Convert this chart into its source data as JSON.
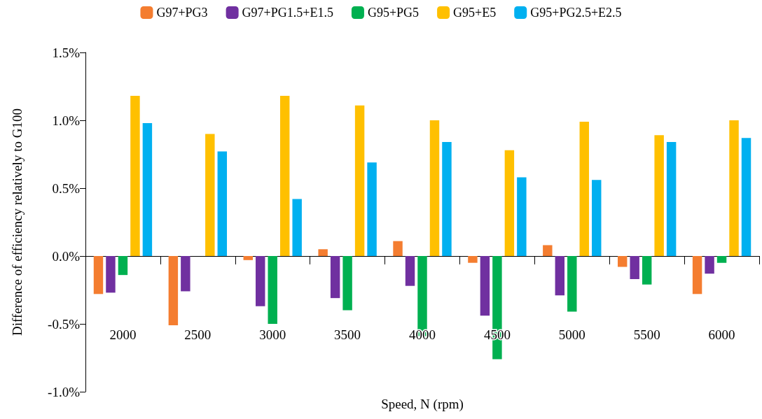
{
  "chart_data": {
    "type": "bar",
    "xlabel": "Speed, N (rpm)",
    "ylabel": "Difference of efficiency relatively to G100",
    "categories": [
      "2000",
      "2500",
      "3000",
      "3500",
      "4000",
      "4500",
      "5000",
      "5500",
      "6000"
    ],
    "series": [
      {
        "name": "G97+PG3",
        "color": "#f47d30",
        "values": [
          -0.28,
          -0.51,
          -0.03,
          0.05,
          0.11,
          -0.05,
          0.08,
          -0.08,
          -0.28
        ]
      },
      {
        "name": "G97+PG1.5+E1.5",
        "color": "#7030a0",
        "values": [
          -0.27,
          -0.26,
          -0.37,
          -0.31,
          -0.22,
          -0.44,
          -0.29,
          -0.17,
          -0.13
        ]
      },
      {
        "name": "G95+PG5",
        "color": "#00b050",
        "values": [
          -0.14,
          0,
          -0.5,
          -0.4,
          -0.59,
          -0.76,
          -0.41,
          -0.21,
          -0.05
        ]
      },
      {
        "name": "G95+E5",
        "color": "#ffc000",
        "values": [
          1.18,
          0.9,
          1.18,
          1.11,
          1.0,
          0.78,
          0.99,
          0.89,
          1.0
        ]
      },
      {
        "name": "G95+PG2.5+E2.5",
        "color": "#00b0f0",
        "values": [
          0.98,
          0.77,
          0.42,
          0.69,
          0.84,
          0.58,
          0.56,
          0.84,
          0.87
        ]
      }
    ],
    "ylim": [
      -1.0,
      1.5
    ],
    "yticks": [
      {
        "value": -1.0,
        "label": "-1.0%"
      },
      {
        "value": -0.5,
        "label": "-0.5%"
      },
      {
        "value": 0,
        "label": "0.0%"
      },
      {
        "value": 0.5,
        "label": "0.5%"
      },
      {
        "value": 1.0,
        "label": "1.0%"
      },
      {
        "value": 1.5,
        "label": "1.5%"
      }
    ],
    "legend": "top"
  }
}
